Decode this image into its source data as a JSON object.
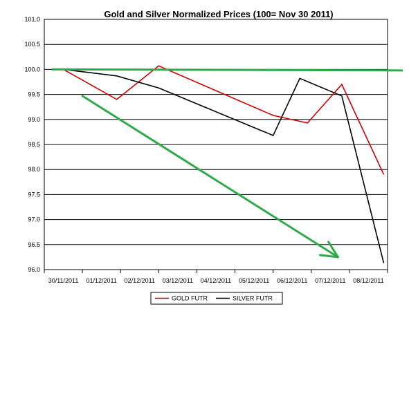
{
  "chart_data": {
    "type": "line",
    "title": "Gold and Silver Normalized Prices  (100= Nov 30 2011)",
    "categories": [
      "30/11/2011",
      "01/12/2011",
      "02/12/2011",
      "03/12/2011",
      "04/12/2011",
      "05/12/2011",
      "06/12/2011",
      "07/12/2011",
      "08/12/2011"
    ],
    "ylim": [
      96.0,
      101.0
    ],
    "yticks": [
      "101.0",
      "100.5",
      "100.0",
      "99.5",
      "99.0",
      "98.5",
      "98.0",
      "97.5",
      "97.0",
      "96.5",
      "96.0"
    ],
    "grid": true,
    "legend_position": "bottom",
    "series": [
      {
        "name": "GOLD  FUTR",
        "color": "#cc0000",
        "points": [
          [
            0,
            100.0
          ],
          [
            1.4,
            99.4
          ],
          [
            2.5,
            100.07
          ],
          [
            5.5,
            99.08
          ],
          [
            6.4,
            98.93
          ],
          [
            7.3,
            99.7
          ],
          [
            8.4,
            97.9
          ]
        ]
      },
      {
        "name": "SILVER  FUTR",
        "color": "#000000",
        "points": [
          [
            0,
            100.0
          ],
          [
            1.4,
            99.87
          ],
          [
            2.5,
            99.63
          ],
          [
            5.5,
            98.68
          ],
          [
            6.2,
            99.82
          ],
          [
            7.3,
            99.47
          ],
          [
            8.4,
            96.13
          ]
        ]
      }
    ],
    "annotations": [
      {
        "kind": "level-line",
        "color": "#2eaa4a",
        "points": [
          [
            -0.3,
            100.0
          ],
          [
            8.9,
            99.98
          ]
        ]
      },
      {
        "kind": "trend-arrow",
        "color": "#2eaa4a",
        "points": [
          [
            0.5,
            99.47
          ],
          [
            7.2,
            96.25
          ]
        ]
      }
    ]
  }
}
